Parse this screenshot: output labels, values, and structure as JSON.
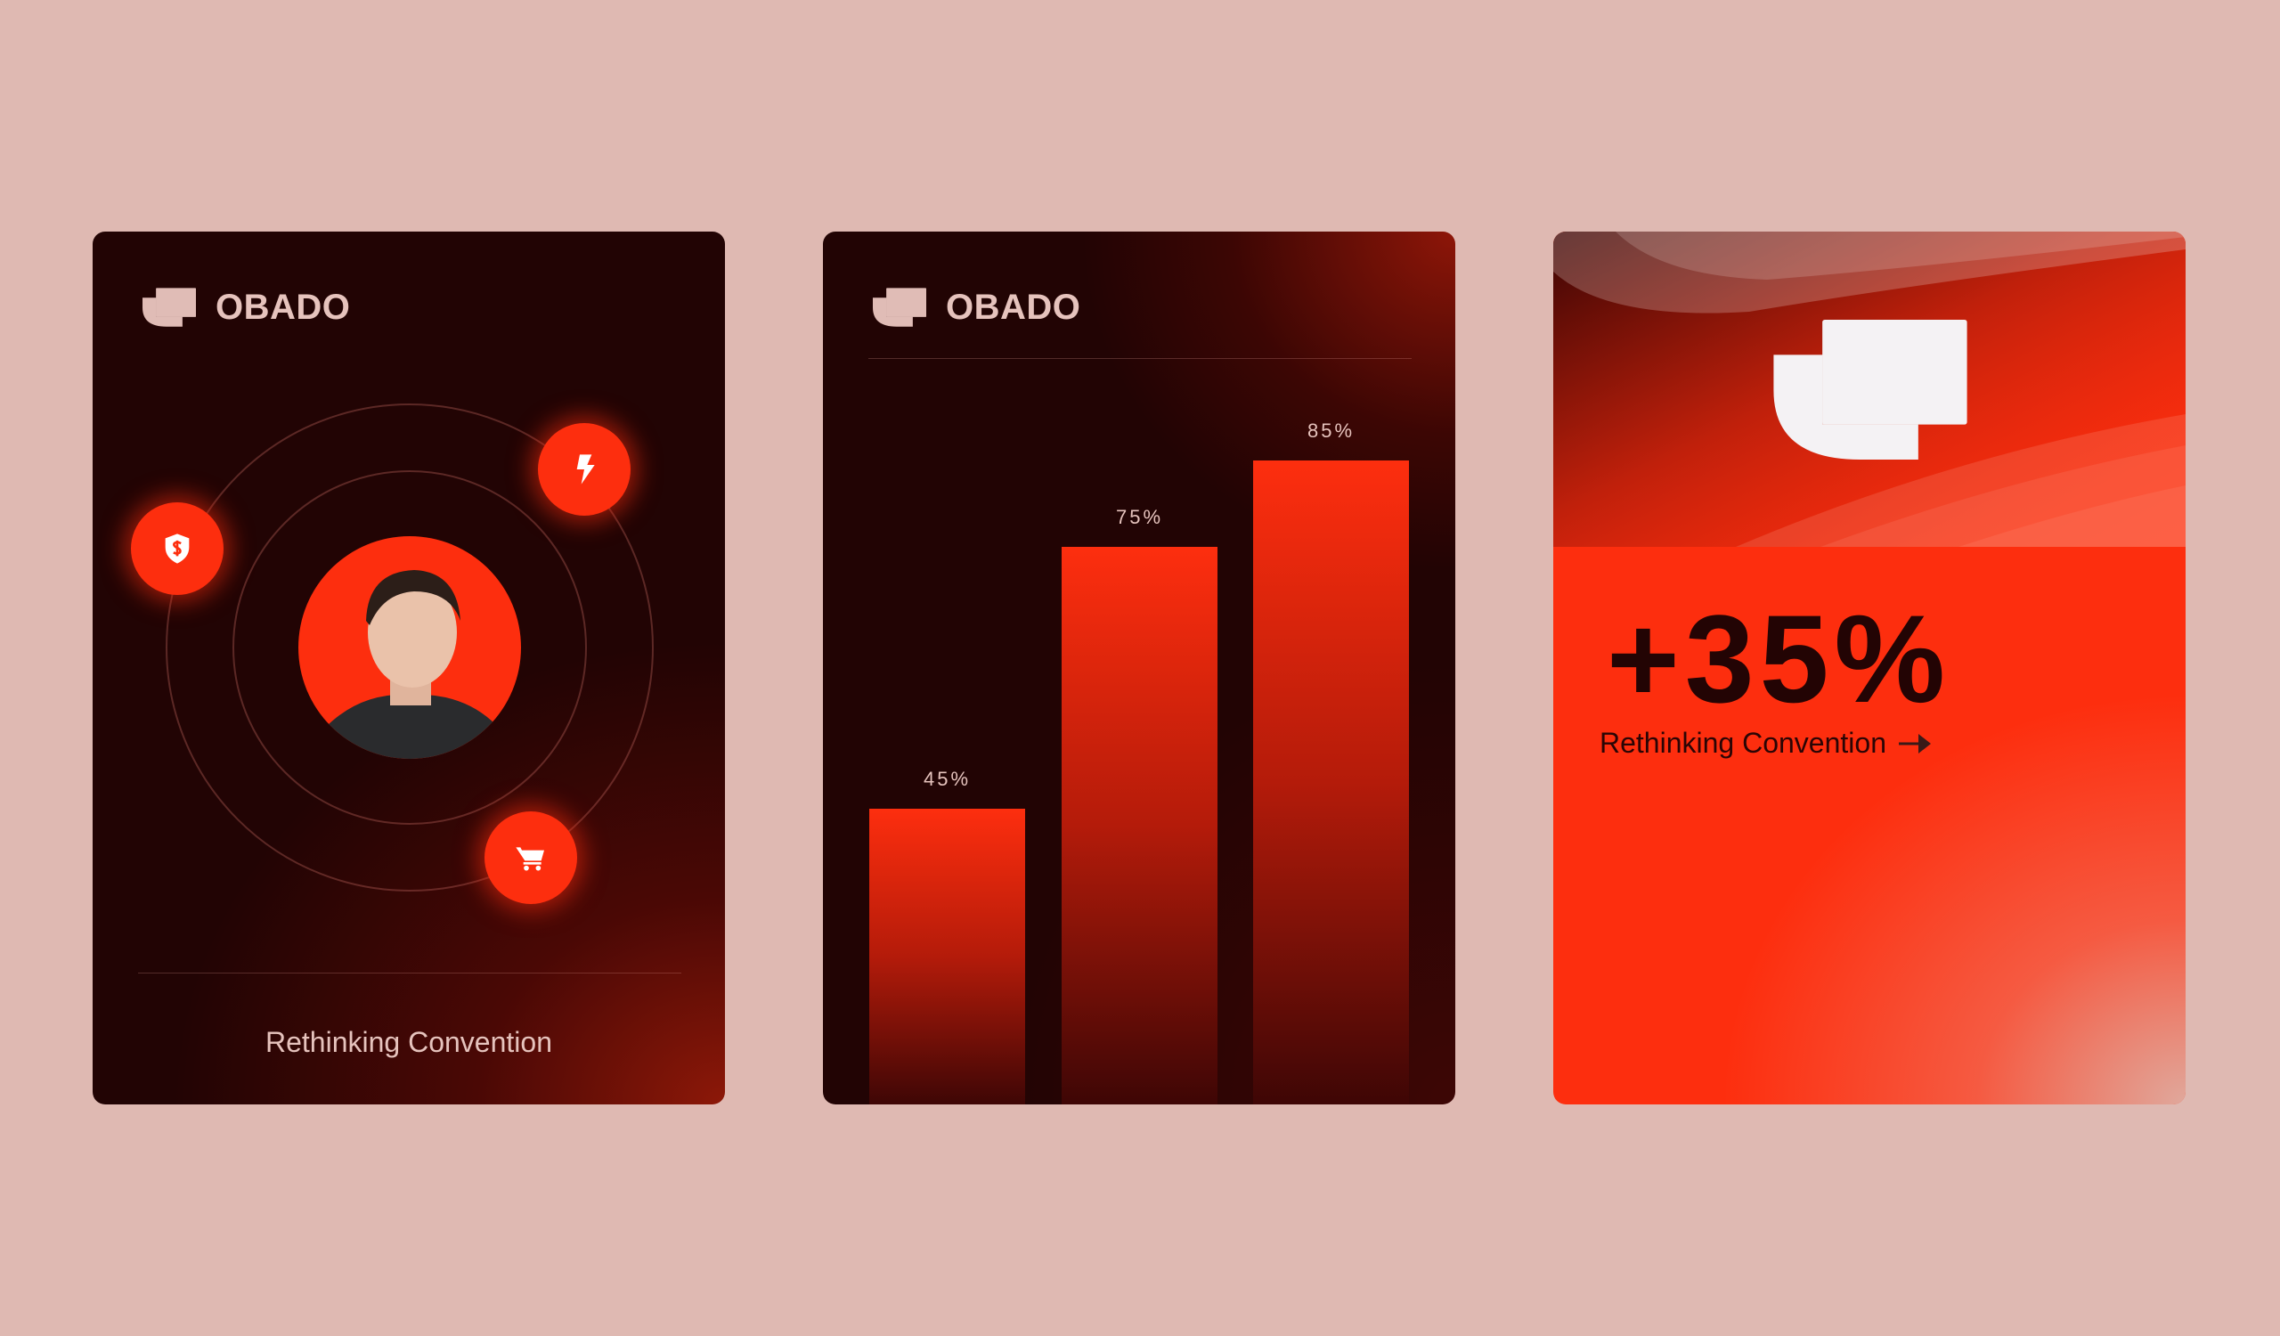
{
  "colors": {
    "background": "#dfb9b2",
    "card_dark": "#220404",
    "accent": "#fd2e0e",
    "text_light": "#e6c3bd",
    "text_dark": "#230404"
  },
  "card1": {
    "brand": {
      "logo_icon": "obado-logo-icon",
      "name": "OBADO"
    },
    "badges": [
      {
        "icon": "shield-dollar-icon"
      },
      {
        "icon": "lightning-bolt-icon"
      },
      {
        "icon": "shopping-cart-icon"
      }
    ],
    "caption": "Rethinking Convention"
  },
  "card2": {
    "brand": {
      "logo_icon": "obado-logo-icon",
      "name": "OBADO"
    },
    "chart_data": {
      "type": "bar",
      "categories": [
        "",
        "",
        ""
      ],
      "values": [
        45,
        75,
        85
      ],
      "labels": [
        "45%",
        "75%",
        "85%"
      ],
      "title": "",
      "xlabel": "",
      "ylabel": "",
      "grid": false
    }
  },
  "card3": {
    "logo_icon": "obado-logo-icon",
    "stat": "+35%",
    "caption": "Rethinking Convention",
    "arrow_icon": "arrow-right-icon"
  }
}
